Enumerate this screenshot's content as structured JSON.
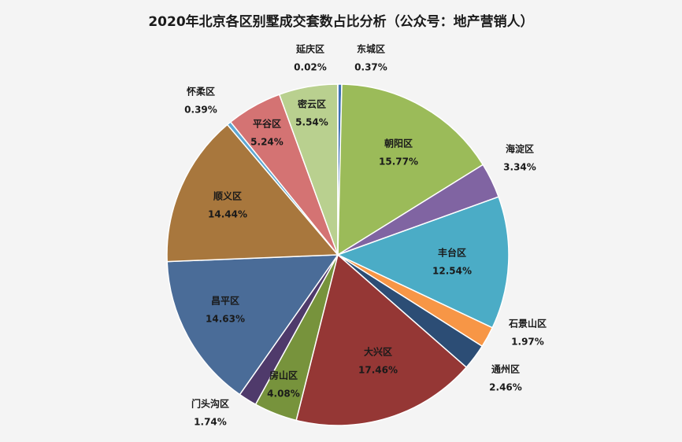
{
  "chart_data": {
    "type": "pie",
    "title": "2020年北京各区别墅成交套数占比分析（公众号：地产营销人）",
    "categories": [
      "东城区",
      "朝阳区",
      "海淀区",
      "丰台区",
      "石景山区",
      "通州区",
      "大兴区",
      "房山区",
      "门头沟区",
      "昌平区",
      "顺义区",
      "怀柔区",
      "平谷区",
      "密云区",
      "延庆区"
    ],
    "values": [
      0.37,
      15.77,
      3.34,
      12.54,
      1.97,
      2.46,
      17.46,
      4.08,
      1.74,
      14.63,
      14.44,
      0.39,
      5.24,
      5.54,
      0.02
    ],
    "value_labels": [
      "0.37%",
      "15.77%",
      "3.34%",
      "12.54%",
      "1.97%",
      "2.46%",
      "17.46%",
      "4.08%",
      "1.74%",
      "14.63%",
      "14.44%",
      "0.39%",
      "5.24%",
      "5.54%",
      "0.02%"
    ],
    "colors": [
      "#3f72b4",
      "#9bbb59",
      "#8064a2",
      "#4bacc6",
      "#f79646",
      "#2c4d75",
      "#953735",
      "#77933c",
      "#4f3a6b",
      "#4a6c98",
      "#a8773d",
      "#5fa8d3",
      "#d47373",
      "#b9d08f",
      "#1f497d"
    ]
  }
}
